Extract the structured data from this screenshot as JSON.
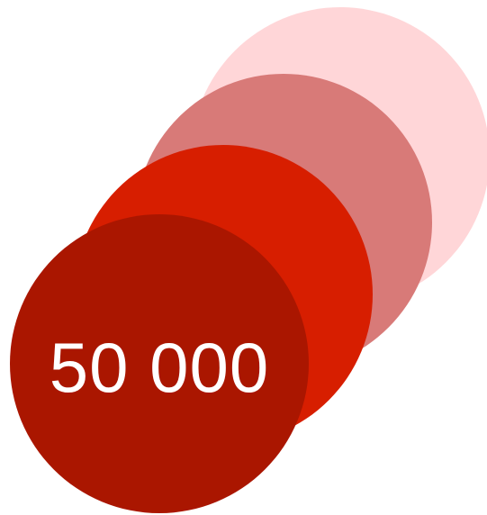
{
  "circles": [
    {
      "name": "circle-lightest",
      "color": "#FFD6D8"
    },
    {
      "name": "circle-light",
      "color": "#D87A78"
    },
    {
      "name": "circle-medium",
      "color": "#D71E00"
    },
    {
      "name": "circle-dark",
      "color": "#AA1600"
    }
  ],
  "label": {
    "value": "50 000",
    "color": "#FFFFFF"
  }
}
